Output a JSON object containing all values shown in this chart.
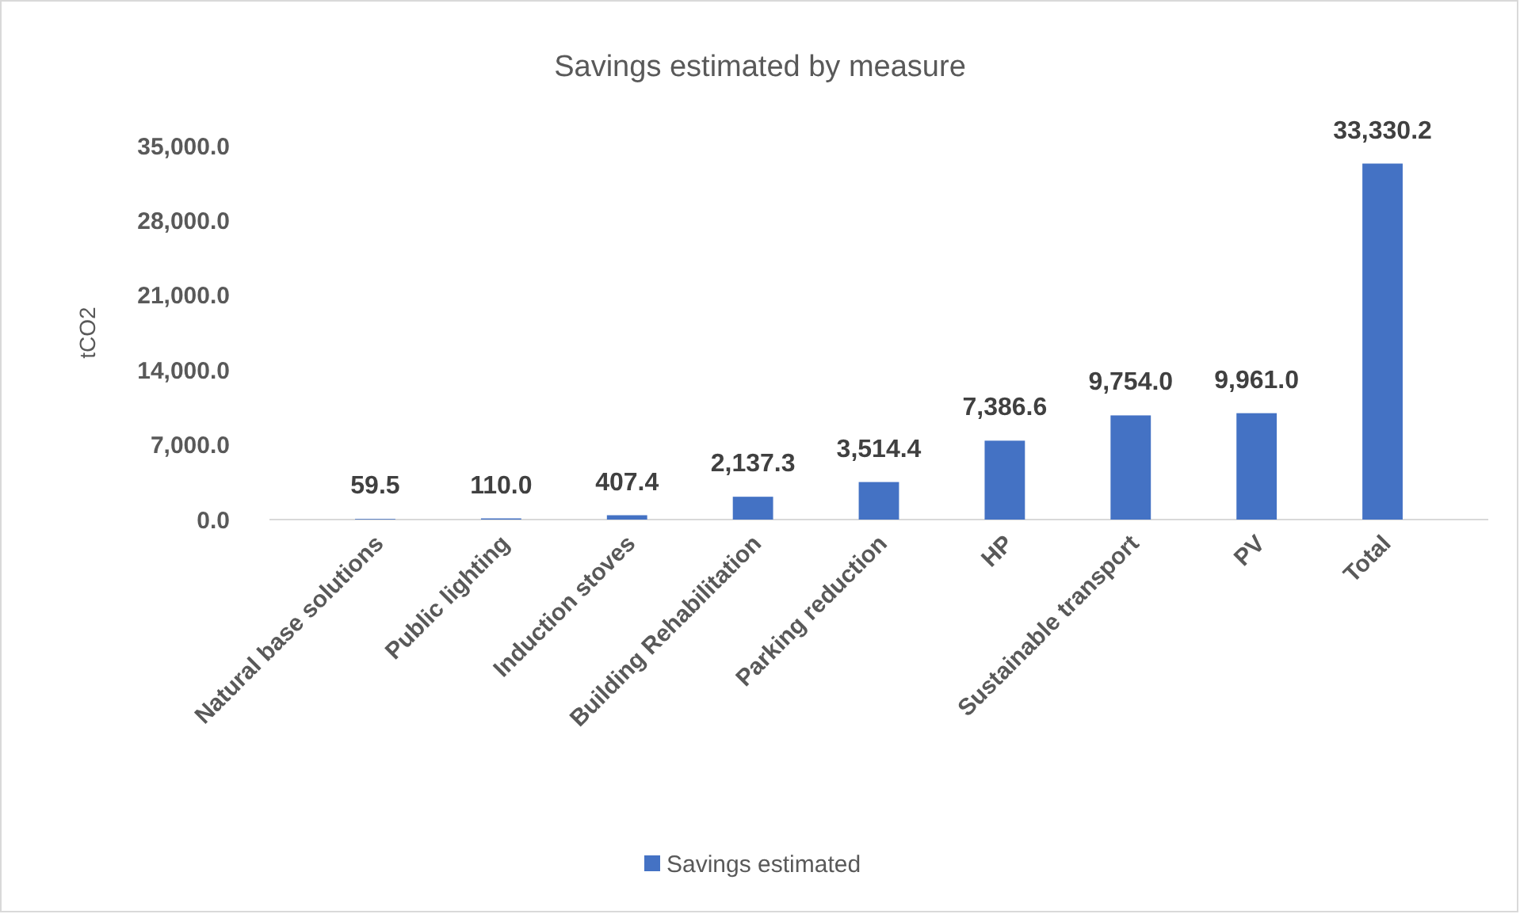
{
  "chart_data": {
    "type": "bar",
    "title": "Savings estimated by measure",
    "ylabel": "tCO2",
    "categories": [
      "Natural base solutions",
      "Public lighting",
      "Induction stoves",
      "Building Rehabilitation",
      "Parking reduction",
      "HP",
      "Sustainable transport",
      "PV",
      "Total"
    ],
    "series": [
      {
        "name": "Savings estimated",
        "color": "#4472c4",
        "values": [
          59.5,
          110.0,
          407.4,
          2137.3,
          3514.4,
          7386.6,
          9754.0,
          9961.0,
          33330.2
        ]
      }
    ],
    "value_labels": [
      "59.5",
      "110.0",
      "407.4",
      "2,137.3",
      "3,514.4",
      "7,386.6",
      "9,754.0",
      "9,961.0",
      "33,330.2"
    ],
    "ylim": [
      0,
      35000
    ],
    "yticks": [
      {
        "value": 0,
        "label": "0.0"
      },
      {
        "value": 7000,
        "label": "7,000.0"
      },
      {
        "value": 14000,
        "label": "14,000.0"
      },
      {
        "value": 21000,
        "label": "21,000.0"
      },
      {
        "value": 28000,
        "label": "28,000.0"
      },
      {
        "value": 35000,
        "label": "35,000.0"
      }
    ],
    "grid": false,
    "legend": "bottom"
  }
}
